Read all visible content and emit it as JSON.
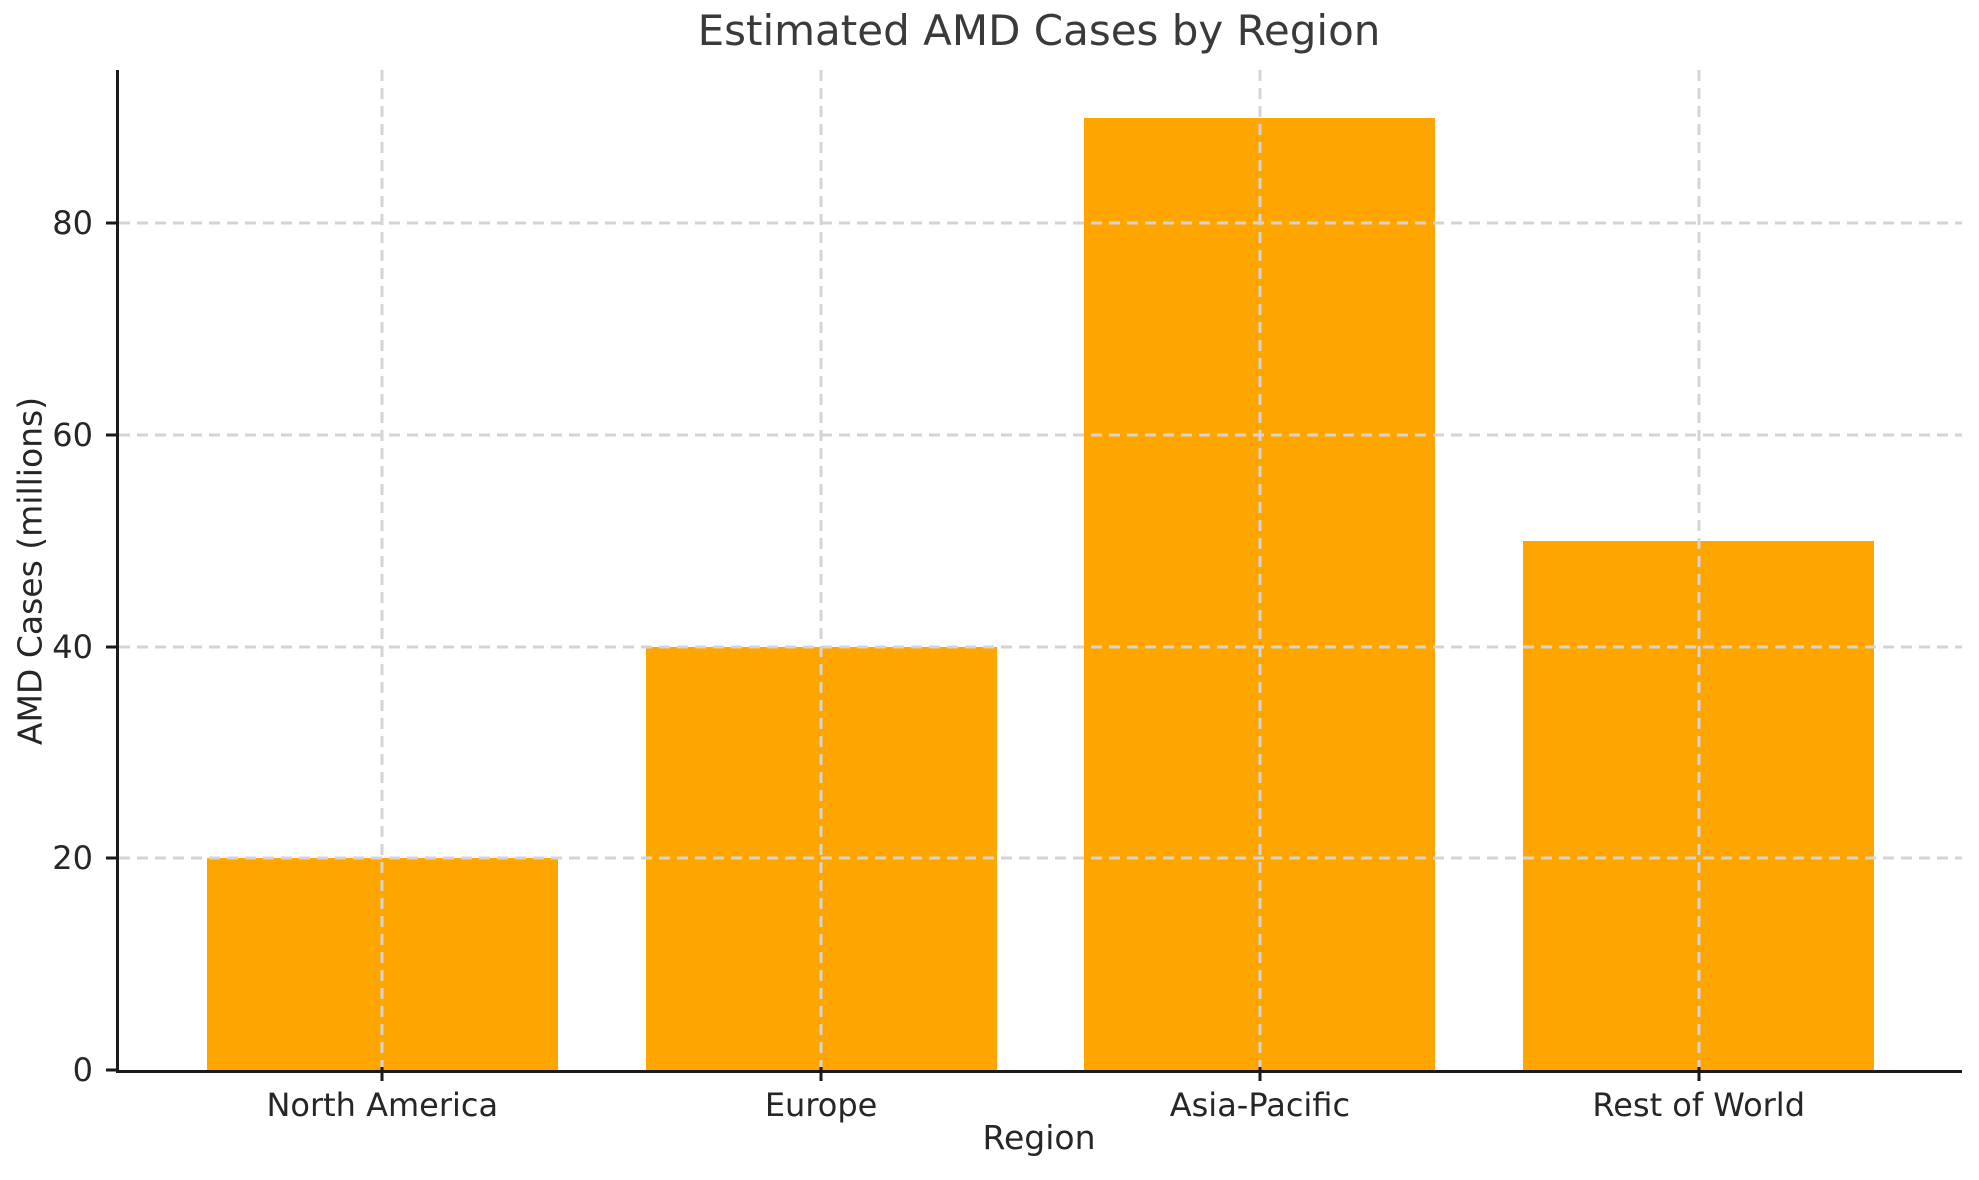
{
  "chart_data": {
    "type": "bar",
    "title": "Estimated AMD Cases by Region",
    "xlabel": "Region",
    "ylabel": "AMD Cases (millions)",
    "categories": [
      "North America",
      "Europe",
      "Asia-Pacific",
      "Rest of World"
    ],
    "values": [
      20,
      40,
      90,
      50
    ],
    "yticks": [
      0,
      20,
      40,
      60,
      80
    ],
    "ylim": [
      0,
      94.5
    ],
    "xlim": [
      -0.6,
      3.6
    ],
    "bar_width": 0.8,
    "legend": "none",
    "grid": "dashed, horizontal and vertical, drawn above bars",
    "colors": {
      "bar": "#FFA500",
      "grid": "#d4d4d4",
      "axis": "#1a1a1a",
      "tick_text": "#262626",
      "title_text": "#3a3a3a",
      "background": "#ffffff"
    }
  }
}
